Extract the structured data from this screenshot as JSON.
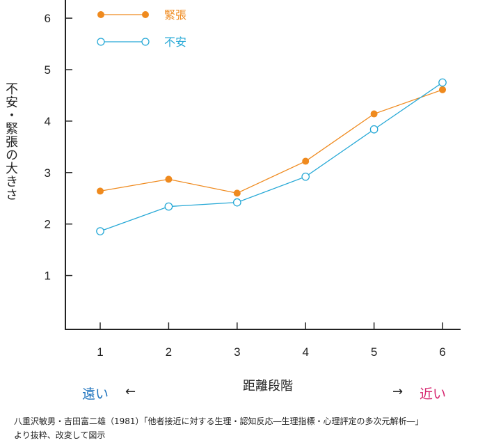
{
  "chart_data": {
    "type": "line",
    "x": [
      1,
      2,
      3,
      4,
      5,
      6
    ],
    "categories": [
      "1",
      "2",
      "3",
      "4",
      "5",
      "6"
    ],
    "series": [
      {
        "name": "緊張",
        "values": [
          2.64,
          2.87,
          2.6,
          3.22,
          4.14,
          4.61
        ],
        "color": "#ef8a1e",
        "marker": "filled-circle"
      },
      {
        "name": "不安",
        "values": [
          1.86,
          2.34,
          2.42,
          2.92,
          3.84,
          4.75
        ],
        "color": "#25a8d6",
        "marker": "open-circle"
      }
    ],
    "yticks": [
      "1",
      "2",
      "3",
      "4",
      "5",
      "6"
    ],
    "ylim": [
      0,
      6.3
    ],
    "xlim": [
      0.5,
      6.5
    ],
    "title": "",
    "xlabel": "距離段階",
    "ylabel": "不安・緊張の大きさ",
    "legend_position": "top-left",
    "grid": false
  },
  "annotations": {
    "far_label": "遠い",
    "far_arrow": "←",
    "near_arrow": "→",
    "near_label": "近い"
  },
  "source_lines": [
    "八重沢敏男・吉田富二雄（1981）「他者接近に対する生理・認知反応―生理指標・心理評定の多次元解析―」",
    "より抜粋、改変して図示"
  ]
}
